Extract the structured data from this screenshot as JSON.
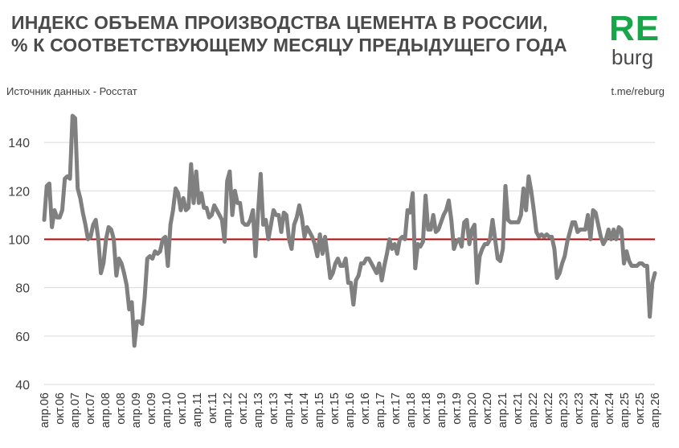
{
  "title_lines": [
    "ИНДЕКС ОБЪЕМА ПРОИЗВОДСТВА ЦЕМЕНТА В РОССИИ,",
    "% К СООТВЕТСТВУЮЩЕМУ МЕСЯЦУ ПРЕДЫДУЩЕГО ГОДА"
  ],
  "logo": {
    "main": "RE",
    "sub": "burg"
  },
  "source": "Источник данных  - Росстат",
  "link": "t.me/reburg",
  "colors": {
    "line": "#808080",
    "reference": "#c00000",
    "logo": "#19a64a",
    "grid": "#d9d9d9"
  },
  "chart_data": {
    "type": "line",
    "title": "ИНДЕКС ОБЪЕМА ПРОИЗВОДСТВА ЦЕМЕНТА В РОССИИ, % К СООТВЕТСТВУЮЩЕМУ МЕСЯЦУ ПРЕДЫДУЩЕГО ГОДА",
    "xlabel": "",
    "ylabel": "",
    "ylim": [
      40,
      150
    ],
    "yticks": [
      40,
      60,
      80,
      100,
      120,
      140
    ],
    "grid": "horizontal",
    "reference_line": 100,
    "x_start": "апр.06",
    "x_end": "апр.26",
    "x_tick_labels": [
      "апр.06",
      "окт.06",
      "апр.07",
      "окт.07",
      "апр.08",
      "окт.08",
      "апр.09",
      "окт.09",
      "апр.10",
      "окт.10",
      "апр.11",
      "окт.11",
      "апр.12",
      "окт.12",
      "апр.13",
      "окт.13",
      "апр.14",
      "окт.14",
      "апр.15",
      "окт.15",
      "апр.16",
      "окт.16",
      "апр.17",
      "окт.17",
      "апр.18",
      "окт.18",
      "апр.19",
      "окт.19",
      "апр.20",
      "окт.20",
      "апр.21",
      "окт.21",
      "апр.22",
      "окт.22",
      "апр.23",
      "окт.23",
      "апр.24",
      "окт.24",
      "апр.25",
      "окт.25",
      "апр.26"
    ],
    "values": [
      108,
      122,
      123,
      105,
      112,
      109,
      109,
      112,
      125,
      126,
      125,
      151,
      150,
      121,
      117,
      111,
      106,
      100,
      101,
      106,
      108,
      100,
      86,
      90,
      100,
      105,
      104,
      100,
      85,
      92,
      90,
      86,
      81,
      71,
      74,
      56,
      66,
      66,
      65,
      76,
      92,
      93,
      92,
      95,
      94,
      95,
      100,
      101,
      89,
      106,
      112,
      121,
      119,
      112,
      117,
      112,
      113,
      131,
      115,
      128,
      115,
      119,
      113,
      113,
      109,
      110,
      114,
      112,
      110,
      108,
      99,
      124,
      128,
      110,
      120,
      115,
      115,
      107,
      106,
      106,
      108,
      112,
      93,
      111,
      127,
      106,
      108,
      100,
      106,
      112,
      110,
      110,
      103,
      111,
      110,
      100,
      96,
      106,
      109,
      114,
      109,
      101,
      105,
      103,
      101,
      98,
      93,
      102,
      94,
      101,
      93,
      84,
      86,
      90,
      92,
      89,
      89,
      92,
      82,
      82,
      73,
      83,
      85,
      90,
      90,
      92,
      92,
      90,
      88,
      86,
      90,
      83,
      89,
      94,
      100,
      96,
      98,
      94,
      100,
      101,
      100,
      112,
      111,
      119,
      88,
      98,
      97,
      99,
      118,
      104,
      104,
      110,
      103,
      104,
      107,
      110,
      112,
      116,
      108,
      96,
      99,
      100,
      97,
      107,
      108,
      98,
      104,
      106,
      82,
      93,
      96,
      98,
      98,
      100,
      108,
      100,
      92,
      91,
      96,
      122,
      108,
      107,
      107,
      107,
      107,
      110,
      121,
      112,
      126,
      120,
      112,
      103,
      101,
      102,
      101,
      102,
      101,
      101,
      96,
      84,
      86,
      90,
      93,
      99,
      103,
      107,
      107,
      103,
      104,
      104,
      104,
      110,
      100,
      112,
      111,
      106,
      101,
      98,
      100,
      104,
      100,
      104,
      100,
      105,
      104,
      90,
      95,
      91,
      89,
      89,
      89,
      90,
      90,
      89,
      89,
      68,
      82,
      86
    ]
  }
}
